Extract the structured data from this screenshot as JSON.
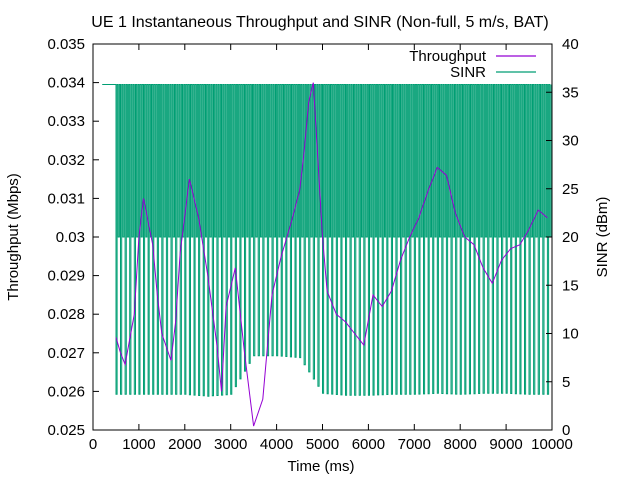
{
  "chart_data": {
    "type": "line",
    "title": "UE 1 Instantaneous Throughput and SINR (Non-full, 5 m/s, BAT)",
    "xlabel": "Time (ms)",
    "ylabel": "Throughput (Mbps)",
    "y2label": "SINR (dBm)",
    "xlim": [
      0,
      10000
    ],
    "ylim": [
      0.025,
      0.035
    ],
    "y2lim": [
      0,
      40
    ],
    "xticks": [
      "0",
      "1000",
      "2000",
      "3000",
      "4000",
      "5000",
      "6000",
      "7000",
      "8000",
      "9000",
      "10000"
    ],
    "yticks": [
      "0.025",
      "0.026",
      "0.027",
      "0.028",
      "0.029",
      "0.03",
      "0.031",
      "0.032",
      "0.033",
      "0.034",
      "0.035"
    ],
    "y2ticks": [
      "0",
      "5",
      "10",
      "15",
      "20",
      "25",
      "30",
      "35",
      "40"
    ],
    "legend_position": "top-right",
    "series": [
      {
        "name": "Throughput",
        "axis": "left",
        "color": "#9400d3",
        "x": [
          500,
          600,
          700,
          900,
          1000,
          1100,
          1300,
          1400,
          1500,
          1700,
          1800,
          1900,
          2100,
          2300,
          2500,
          2700,
          2800,
          2900,
          3100,
          3300,
          3500,
          3700,
          3900,
          4100,
          4300,
          4500,
          4600,
          4700,
          4800,
          4900,
          5000,
          5100,
          5300,
          5500,
          5700,
          5900,
          6100,
          6300,
          6500,
          6700,
          6900,
          7100,
          7300,
          7500,
          7700,
          7900,
          8100,
          8300,
          8500,
          8700,
          8900,
          9100,
          9300,
          9500,
          9700,
          9900
        ],
        "values": [
          0.0274,
          0.027,
          0.0267,
          0.028,
          0.03,
          0.031,
          0.0298,
          0.0285,
          0.0275,
          0.0268,
          0.0278,
          0.0296,
          0.0315,
          0.0305,
          0.029,
          0.0272,
          0.026,
          0.0282,
          0.0292,
          0.027,
          0.0251,
          0.0258,
          0.0285,
          0.0295,
          0.0303,
          0.0312,
          0.0322,
          0.0335,
          0.034,
          0.032,
          0.03,
          0.0286,
          0.028,
          0.0278,
          0.0275,
          0.0272,
          0.0285,
          0.0282,
          0.0286,
          0.0294,
          0.03,
          0.0305,
          0.0312,
          0.0318,
          0.0316,
          0.0306,
          0.03,
          0.0298,
          0.0292,
          0.0288,
          0.0294,
          0.0297,
          0.0298,
          0.0302,
          0.0307,
          0.0305
        ]
      },
      {
        "name": "SINR",
        "axis": "right",
        "color": "#009e73",
        "high": 35.8,
        "start_ms": 200,
        "burst_start_ms": 500,
        "period_ms": 50,
        "lows_ms": [
          500,
          1000,
          1500,
          2000,
          2500,
          3000,
          3500,
          4000,
          4500,
          5000,
          5500,
          6000,
          6500,
          7000,
          7500,
          8000,
          8500,
          9000,
          9500,
          10000
        ],
        "lows_db": [
          3.7,
          3.7,
          3.7,
          3.7,
          3.5,
          3.7,
          7.7,
          7.7,
          7.5,
          3.8,
          3.6,
          3.6,
          3.7,
          3.7,
          3.8,
          3.7,
          3.8,
          3.8,
          3.7,
          3.7
        ],
        "mid_band_db": 20
      }
    ]
  }
}
